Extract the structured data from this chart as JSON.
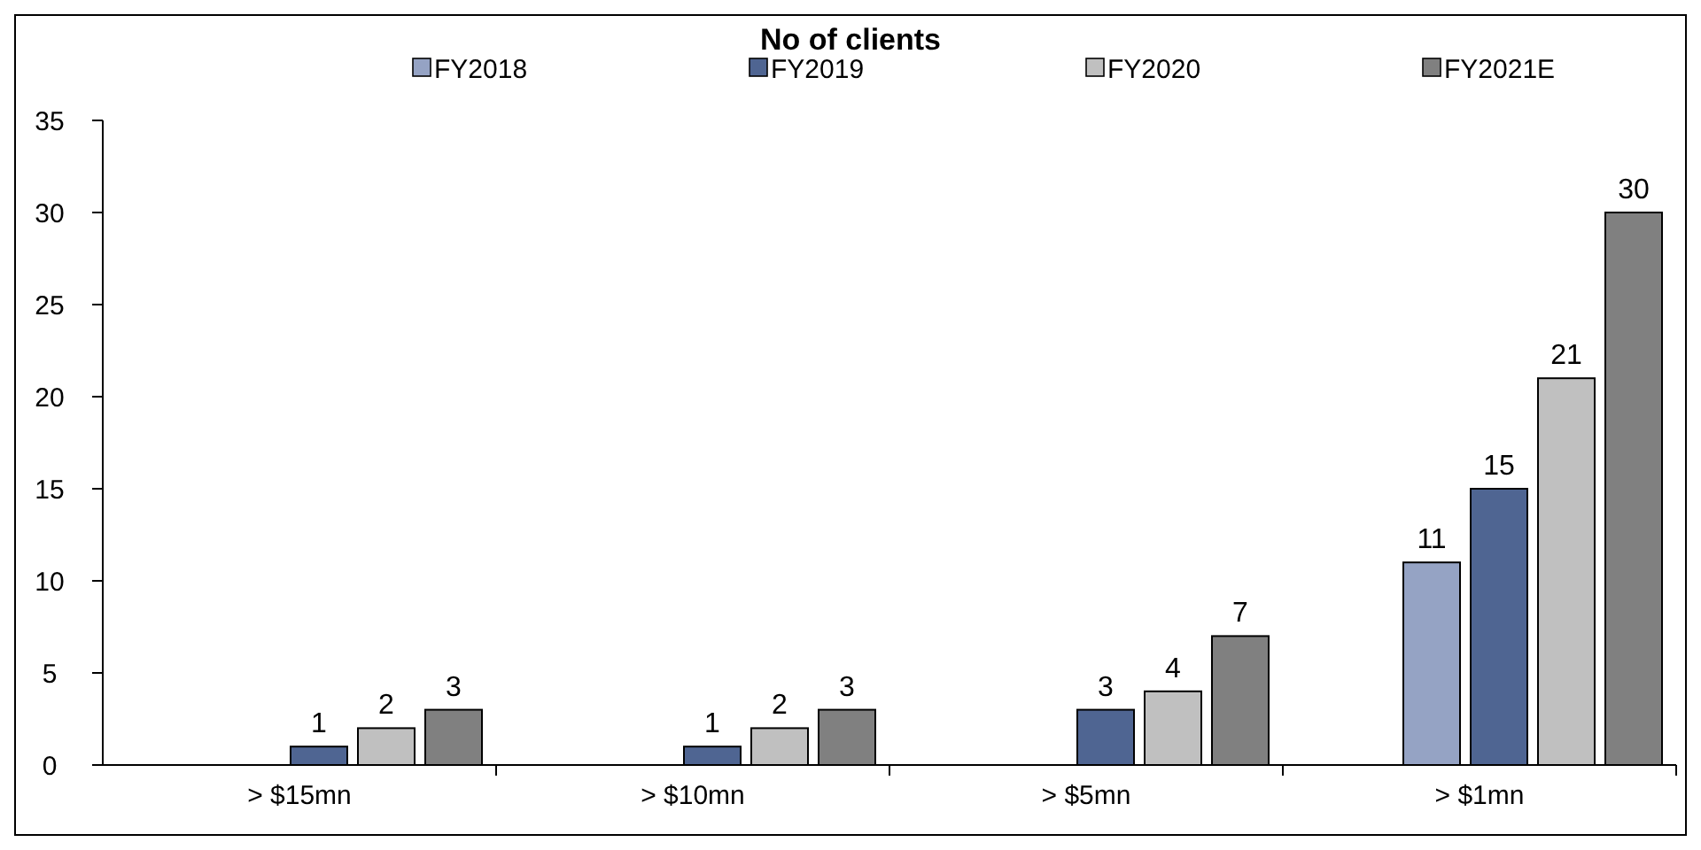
{
  "chart_data": {
    "type": "bar",
    "title": "No of clients",
    "categories": [
      "> $15mn",
      "> $10mn",
      "> $5mn",
      "> $1mn"
    ],
    "series": [
      {
        "name": "FY2018",
        "color": "#95a3c4",
        "values": [
          null,
          null,
          null,
          11
        ]
      },
      {
        "name": "FY2019",
        "color": "#4f6592",
        "values": [
          1,
          1,
          3,
          15
        ]
      },
      {
        "name": "FY2020",
        "color": "#c0c0c0",
        "values": [
          2,
          2,
          4,
          21
        ]
      },
      {
        "name": "FY2021E",
        "color": "#808080",
        "values": [
          3,
          3,
          7,
          30
        ]
      }
    ],
    "ylim": [
      0,
      35
    ],
    "yticks": [
      0,
      5,
      10,
      15,
      20,
      25,
      30,
      35
    ],
    "grid": false,
    "legend": "top",
    "data_labels": true
  }
}
